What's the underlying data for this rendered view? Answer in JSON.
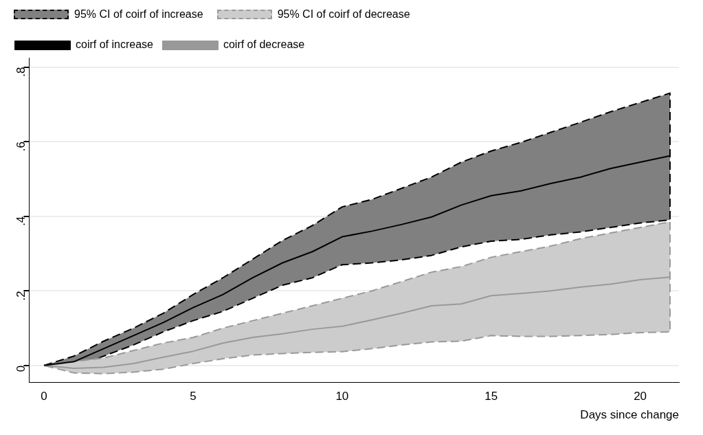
{
  "chart_data": {
    "type": "line",
    "xlabel": "Days since change",
    "x": [
      0,
      1,
      2,
      3,
      4,
      5,
      6,
      7,
      8,
      9,
      10,
      11,
      12,
      13,
      14,
      15,
      16,
      17,
      18,
      19,
      20,
      21
    ],
    "annotations": [
      "95% CI of coirf of increase",
      "95% CI of coirf of decrease"
    ],
    "series": [
      {
        "name": "coirf of increase",
        "type": "line",
        "color": "#000000",
        "line_style": "solid",
        "values": [
          0,
          0.01,
          0.045,
          0.08,
          0.115,
          0.155,
          0.19,
          0.235,
          0.275,
          0.305,
          0.345,
          0.36,
          0.378,
          0.398,
          0.43,
          0.455,
          0.468,
          0.488,
          0.505,
          0.528,
          0.545,
          0.562
        ],
        "upper": [
          0,
          0.025,
          0.065,
          0.1,
          0.14,
          0.19,
          0.235,
          0.285,
          0.335,
          0.375,
          0.425,
          0.445,
          0.475,
          0.505,
          0.545,
          0.575,
          0.598,
          0.625,
          0.652,
          0.68,
          0.705,
          0.73
        ],
        "lower": [
          0,
          -0.005,
          0.025,
          0.055,
          0.09,
          0.12,
          0.145,
          0.18,
          0.215,
          0.235,
          0.27,
          0.275,
          0.283,
          0.295,
          0.318,
          0.333,
          0.338,
          0.35,
          0.358,
          0.37,
          0.382,
          0.39
        ]
      },
      {
        "name": "coirf of decrease",
        "type": "line",
        "color": "#999999",
        "line_style": "solid",
        "values": [
          0,
          -0.008,
          -0.005,
          0.005,
          0.022,
          0.038,
          0.06,
          0.075,
          0.085,
          0.097,
          0.105,
          0.122,
          0.14,
          0.16,
          0.165,
          0.187,
          0.193,
          0.2,
          0.21,
          0.218,
          0.23,
          0.237
        ],
        "upper": [
          0,
          0.01,
          0.02,
          0.04,
          0.06,
          0.075,
          0.1,
          0.12,
          0.14,
          0.16,
          0.18,
          0.2,
          0.225,
          0.25,
          0.265,
          0.29,
          0.305,
          0.32,
          0.34,
          0.355,
          0.37,
          0.385
        ],
        "lower": [
          0,
          -0.02,
          -0.022,
          -0.018,
          -0.01,
          0.005,
          0.018,
          0.028,
          0.032,
          0.035,
          0.037,
          0.045,
          0.055,
          0.063,
          0.065,
          0.08,
          0.078,
          0.078,
          0.08,
          0.083,
          0.088,
          0.09
        ]
      }
    ],
    "xlim": [
      -0.5,
      21.3
    ],
    "xticks": [
      0,
      5,
      10,
      15,
      20
    ],
    "ylim": [
      -0.045,
      0.825
    ],
    "yticks": [
      0,
      {
        "value": 0.2,
        "label": ".2"
      },
      {
        "value": 0.4,
        "label": ".4"
      },
      {
        "value": 0.6,
        "label": ".6"
      },
      {
        "value": 0.8,
        "label": ".8"
      }
    ],
    "grid": "y",
    "legend": "top",
    "marker": "none"
  }
}
